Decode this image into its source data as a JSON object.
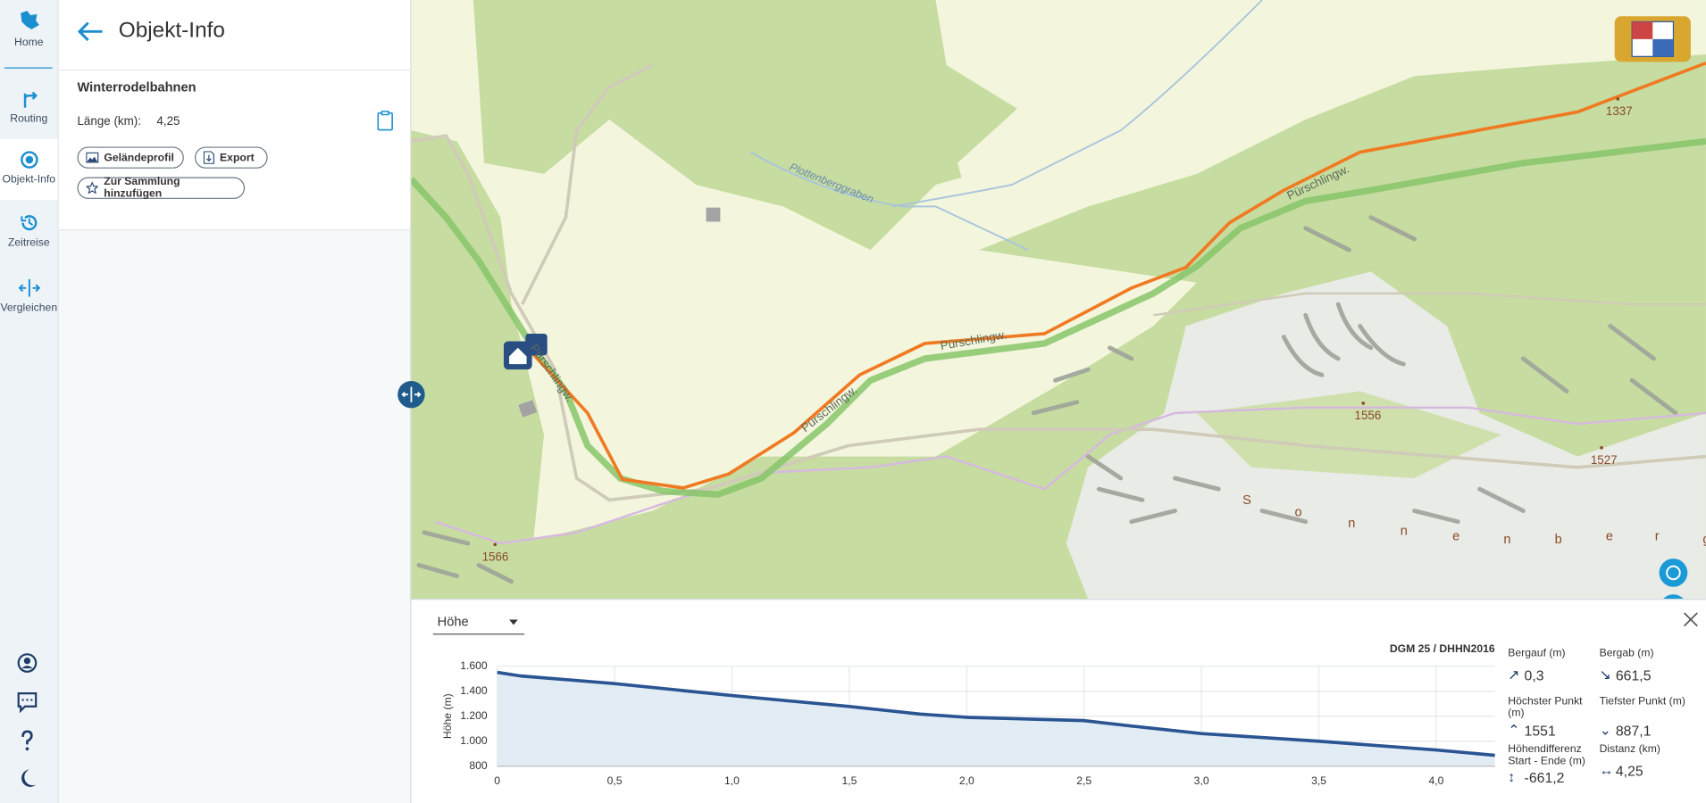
{
  "sidebar": {
    "items": [
      "Home",
      "Routing",
      "Objekt-Info",
      "Zeitreise",
      "Vergleichen"
    ]
  },
  "panel": {
    "title": "Objekt-Info",
    "object_name": "Winterrodelbahnen",
    "length_label": "Länge (km):",
    "length_value": "4,25",
    "buttons": [
      "Geländeprofil",
      "Export",
      "Zur Sammlung hinzufügen"
    ]
  },
  "map": {
    "road_labels": [
      "Pürschlingw.",
      "Pürschlingw.",
      "Pürschlingw.",
      "Pürschlingw."
    ],
    "stream_label": "Plottenberggraben",
    "peaks": [
      "1556",
      "1527",
      "1566",
      "1337"
    ],
    "area_label_letters": [
      "S",
      "o",
      "n",
      "n",
      "e",
      "n",
      "b",
      "e",
      "r",
      "g"
    ]
  },
  "profile": {
    "dropdown": "Höhe",
    "source": "DGM 25 / DHHN2016",
    "stats": [
      {
        "label": "Bergauf (m)",
        "icon": "↗",
        "value": "0,3"
      },
      {
        "label": "Bergab (m)",
        "icon": "↘",
        "value": "661,5"
      },
      {
        "label": "Höchster Punkt (m)",
        "icon": "⌃",
        "value": "1551"
      },
      {
        "label": "Tiefster Punkt (m)",
        "icon": "⌄",
        "value": "887,1"
      },
      {
        "label": "Höhendifferenz Start - Ende (m)",
        "icon": "↕",
        "value": "-661,2"
      },
      {
        "label": "Distanz (km)",
        "icon": "↔",
        "value": "4,25"
      }
    ]
  },
  "chart_data": {
    "type": "line",
    "y_label": "Höhe (m)",
    "x": [
      0,
      0.1,
      0.5,
      1.0,
      1.5,
      1.8,
      2.0,
      2.5,
      2.7,
      3.0,
      3.5,
      4.0,
      4.25
    ],
    "values": [
      1551,
      1522,
      1461,
      1365,
      1278,
      1217,
      1191,
      1165,
      1122,
      1061,
      1000,
      930,
      887
    ],
    "color": "#2a5592",
    "fill": "#e2ecf5",
    "xlim": [
      0,
      4.25
    ],
    "ylim": [
      800,
      1600
    ],
    "xticks": [
      0,
      {
        "value": 0.5,
        "label": "0,5"
      },
      {
        "value": 1.0,
        "label": "1,0"
      },
      {
        "value": 1.5,
        "label": "1,5"
      },
      {
        "value": 2.0,
        "label": "2,0"
      },
      {
        "value": 2.5,
        "label": "2,5"
      },
      {
        "value": 3.0,
        "label": "3,0"
      },
      {
        "value": 3.5,
        "label": "3,5"
      },
      {
        "value": 4.0,
        "label": "4,0"
      }
    ],
    "yticks": [
      800,
      {
        "value": 1000,
        "label": "1.000"
      },
      {
        "value": 1200,
        "label": "1.200"
      },
      {
        "value": 1400,
        "label": "1.400"
      },
      {
        "value": 1600,
        "label": "1.600"
      }
    ],
    "grid": true
  }
}
